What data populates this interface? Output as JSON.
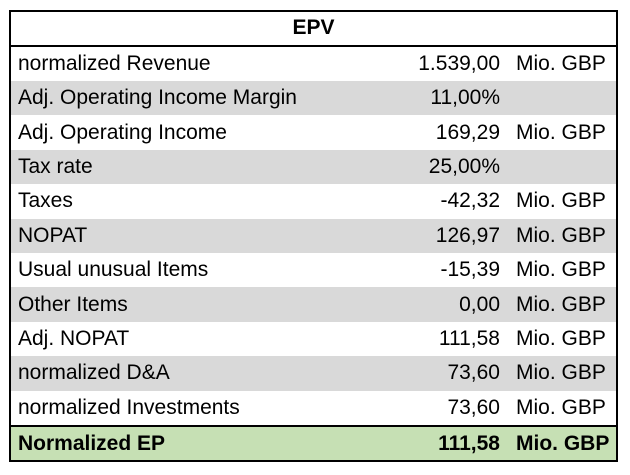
{
  "table": {
    "title": "EPV",
    "rows": [
      {
        "label": "normalized Revenue",
        "value": "1.539,00",
        "unit": "Mio. GBP",
        "shaded": false
      },
      {
        "label": "Adj. Operating Income Margin",
        "value": "11,00%",
        "unit": "",
        "shaded": true
      },
      {
        "label": "Adj. Operating Income",
        "value": "169,29",
        "unit": "Mio. GBP",
        "shaded": false
      },
      {
        "label": "Tax rate",
        "value": "25,00%",
        "unit": "",
        "shaded": true
      },
      {
        "label": "Taxes",
        "value": "-42,32",
        "unit": "Mio. GBP",
        "shaded": false
      },
      {
        "label": "NOPAT",
        "value": "126,97",
        "unit": "Mio. GBP",
        "shaded": true
      },
      {
        "label": "Usual unusual Items",
        "value": "-15,39",
        "unit": "Mio. GBP",
        "shaded": false
      },
      {
        "label": "Other Items",
        "value": "0,00",
        "unit": "Mio. GBP",
        "shaded": true
      },
      {
        "label": "Adj. NOPAT",
        "value": "111,58",
        "unit": "Mio. GBP",
        "shaded": false
      },
      {
        "label": "normalized D&A",
        "value": "73,60",
        "unit": "Mio. GBP",
        "shaded": true
      },
      {
        "label": "normalized Investments",
        "value": "73,60",
        "unit": "Mio. GBP",
        "shaded": false
      }
    ],
    "total": {
      "label": "Normalized EP",
      "value": "111,58",
      "unit": "Mio. GBP"
    }
  },
  "colors": {
    "shaded_row": "#d9d9d9",
    "total_row": "#c6e0b4",
    "border": "#000000"
  }
}
